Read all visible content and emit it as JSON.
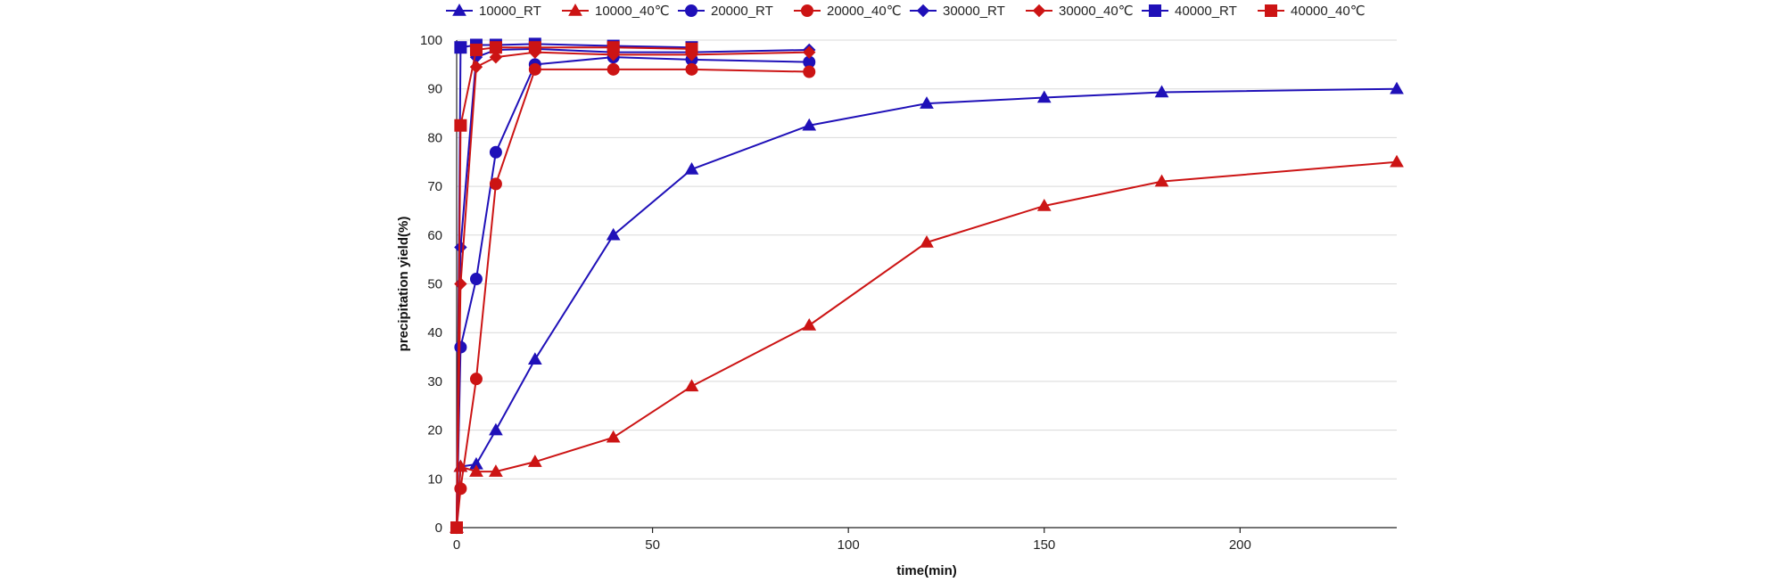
{
  "chart_data": {
    "type": "line",
    "title": "",
    "xlabel": "time(min)",
    "ylabel": "precipitation yield(%)",
    "xlim": [
      0,
      240
    ],
    "ylim": [
      0,
      100
    ],
    "xticks": [
      0,
      50,
      100,
      150,
      200
    ],
    "yticks": [
      0,
      10,
      20,
      30,
      40,
      50,
      60,
      70,
      80,
      90,
      100
    ],
    "grid": "horizontal",
    "legend_position": "top",
    "series": [
      {
        "name": "10000_RT",
        "color": "#1f10b8",
        "marker": "triangle",
        "x": [
          0,
          1,
          5,
          10,
          20,
          40,
          60,
          90,
          120,
          150,
          180,
          240
        ],
        "y": [
          0,
          12.5,
          13,
          20,
          34.5,
          60,
          73.5,
          82.5,
          87,
          88.2,
          89.3,
          90
        ]
      },
      {
        "name": "10000_40℃",
        "color": "#cc1414",
        "marker": "triangle",
        "x": [
          0,
          1,
          5,
          10,
          20,
          40,
          60,
          90,
          120,
          150,
          180,
          240
        ],
        "y": [
          0,
          12.5,
          11.5,
          11.5,
          13.5,
          18.5,
          29,
          41.5,
          58.5,
          66,
          71,
          75
        ]
      },
      {
        "name": "20000_RT",
        "color": "#1f10b8",
        "marker": "circle",
        "x": [
          0,
          1,
          5,
          10,
          20,
          40,
          60,
          90
        ],
        "y": [
          0,
          37,
          51,
          77,
          95,
          96.5,
          96,
          95.5
        ]
      },
      {
        "name": "20000_40℃",
        "color": "#cc1414",
        "marker": "circle",
        "x": [
          0,
          1,
          5,
          10,
          20,
          40,
          60,
          90
        ],
        "y": [
          0,
          8,
          30.5,
          70.5,
          94,
          94,
          94,
          93.5
        ]
      },
      {
        "name": "30000_RT",
        "color": "#1f10b8",
        "marker": "diamond",
        "x": [
          0,
          1,
          5,
          10,
          20,
          40,
          60,
          90
        ],
        "y": [
          0,
          57.5,
          96.5,
          98,
          98.2,
          97.5,
          97.5,
          98
        ]
      },
      {
        "name": "30000_40℃",
        "color": "#cc1414",
        "marker": "diamond",
        "x": [
          0,
          1,
          5,
          10,
          20,
          40,
          60,
          90
        ],
        "y": [
          0,
          50,
          94.5,
          96.5,
          97.5,
          97,
          97,
          97.5
        ]
      },
      {
        "name": "40000_RT",
        "color": "#1f10b8",
        "marker": "square",
        "x": [
          0,
          1,
          5,
          10,
          20,
          40,
          60
        ],
        "y": [
          0,
          98.5,
          99,
          99,
          99.2,
          98.8,
          98.5
        ]
      },
      {
        "name": "40000_40℃",
        "color": "#cc1414",
        "marker": "square",
        "x": [
          0,
          1,
          5,
          10,
          20,
          40,
          60
        ],
        "y": [
          0,
          82.5,
          98,
          98.5,
          98.5,
          98.5,
          98.2
        ]
      }
    ]
  }
}
